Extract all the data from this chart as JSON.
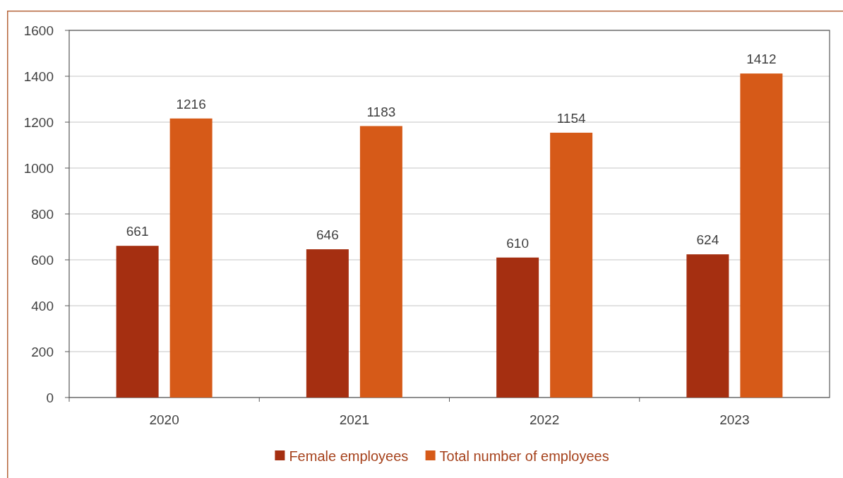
{
  "chart_data": {
    "type": "bar",
    "categories": [
      "2020",
      "2021",
      "2022",
      "2023"
    ],
    "series": [
      {
        "name": "Female employees",
        "color": "#a52f11",
        "values": [
          661,
          646,
          610,
          624
        ]
      },
      {
        "name": "Total number of employees",
        "color": "#d65a18",
        "values": [
          1216,
          1183,
          1154,
          1412
        ]
      }
    ],
    "ylim": [
      0,
      1600
    ],
    "yticks": [
      0,
      200,
      400,
      600,
      800,
      1000,
      1200,
      1400,
      1600
    ],
    "grid": "y",
    "legend": "bottom",
    "data_labels": true
  }
}
